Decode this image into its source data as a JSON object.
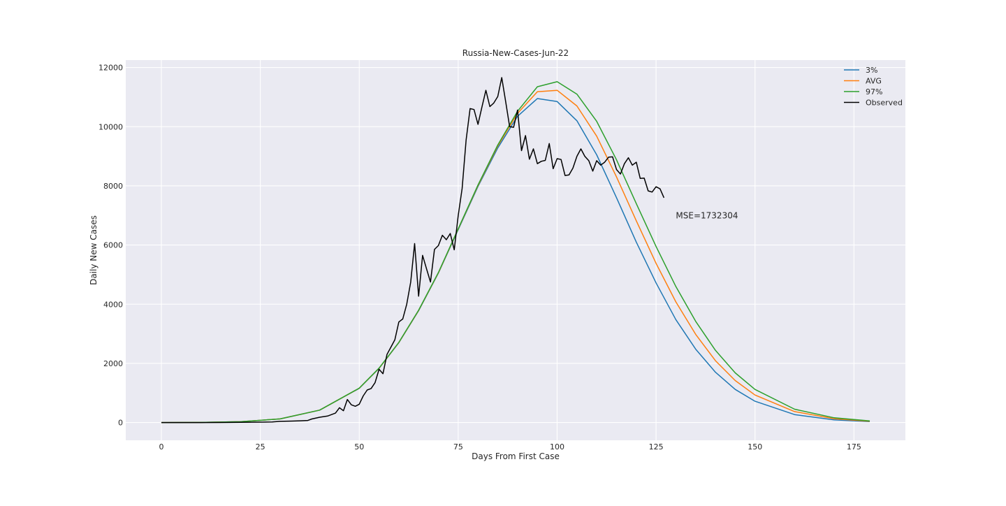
{
  "chart_data": {
    "type": "line",
    "title": "Russia-New-Cases-Jun-22",
    "xlabel": "Days From First Case",
    "ylabel": "Daily New Cases",
    "xlim": [
      -9,
      188
    ],
    "ylim": [
      -600,
      12250
    ],
    "xticks": [
      0,
      25,
      50,
      75,
      100,
      125,
      150,
      175
    ],
    "xtick_labels": [
      "0",
      "25",
      "50",
      "75",
      "100",
      "125",
      "150",
      "175"
    ],
    "yticks": [
      0,
      2000,
      4000,
      6000,
      8000,
      10000,
      12000
    ],
    "ytick_labels": [
      "0",
      "2000",
      "4000",
      "6000",
      "8000",
      "10000",
      "12000"
    ],
    "grid": true,
    "legend_position": "top-right",
    "annotation": {
      "text": "MSE=1732304",
      "x": 130,
      "y": 6900
    },
    "series": [
      {
        "name": "3%",
        "color": "#1f77b4",
        "x": [
          0,
          10,
          20,
          30,
          40,
          50,
          55,
          60,
          65,
          70,
          75,
          80,
          85,
          90,
          95,
          100,
          105,
          110,
          115,
          120,
          125,
          130,
          135,
          140,
          145,
          150,
          160,
          170,
          179
        ],
        "y": [
          0,
          4,
          28,
          122,
          420,
          1155,
          1830,
          2700,
          3780,
          5050,
          6520,
          7980,
          9280,
          10350,
          10950,
          10850,
          10200,
          9050,
          7600,
          6100,
          4720,
          3480,
          2480,
          1700,
          1120,
          720,
          270,
          90,
          30
        ]
      },
      {
        "name": "AVG",
        "color": "#ff7f0e",
        "x": [
          0,
          10,
          20,
          30,
          40,
          50,
          55,
          60,
          65,
          70,
          75,
          80,
          85,
          90,
          95,
          100,
          105,
          110,
          115,
          120,
          125,
          130,
          135,
          140,
          145,
          150,
          160,
          170,
          179
        ],
        "y": [
          0,
          4,
          28,
          122,
          420,
          1160,
          1835,
          2705,
          3790,
          5060,
          6540,
          8010,
          9350,
          10450,
          11180,
          11230,
          10700,
          9680,
          8300,
          6820,
          5380,
          4080,
          2980,
          2090,
          1420,
          930,
          370,
          130,
          45
        ]
      },
      {
        "name": "97%",
        "color": "#2ca02c",
        "x": [
          0,
          10,
          20,
          30,
          40,
          50,
          55,
          60,
          65,
          70,
          75,
          80,
          85,
          90,
          95,
          100,
          105,
          110,
          115,
          120,
          125,
          130,
          135,
          140,
          145,
          150,
          160,
          170,
          179
        ],
        "y": [
          0,
          4,
          28,
          122,
          420,
          1162,
          1840,
          2710,
          3795,
          5070,
          6550,
          8030,
          9380,
          10520,
          11350,
          11520,
          11100,
          10180,
          8880,
          7400,
          5950,
          4600,
          3420,
          2440,
          1680,
          1120,
          450,
          160,
          55
        ]
      },
      {
        "name": "Observed",
        "color": "#000000",
        "x": [
          0,
          5,
          10,
          15,
          20,
          25,
          28,
          30,
          33,
          35,
          37,
          38,
          40,
          42,
          44,
          45,
          46,
          47,
          48,
          49,
          50,
          51,
          52,
          53,
          54,
          55,
          56,
          57,
          58,
          59,
          60,
          61,
          62,
          63,
          64,
          65,
          66,
          67,
          68,
          69,
          70,
          71,
          72,
          73,
          74,
          75,
          76,
          77,
          78,
          79,
          80,
          81,
          82,
          83,
          84,
          85,
          86,
          87,
          88,
          89,
          90,
          91,
          92,
          93,
          94,
          95,
          96,
          97,
          98,
          99,
          100,
          101,
          102,
          103,
          104,
          105,
          106,
          107,
          108,
          109,
          110,
          111,
          112,
          113,
          114,
          115,
          116,
          117,
          118,
          119,
          120,
          121,
          122,
          123,
          124,
          125,
          126,
          127
        ],
        "y": [
          0,
          0,
          1,
          3,
          8,
          15,
          20,
          40,
          50,
          60,
          70,
          120,
          180,
          220,
          320,
          500,
          400,
          780,
          600,
          550,
          620,
          900,
          1100,
          1150,
          1350,
          1800,
          1650,
          2300,
          2550,
          2800,
          3400,
          3500,
          4000,
          4750,
          6050,
          4270,
          5650,
          5200,
          4750,
          5850,
          5980,
          6330,
          6180,
          6390,
          5840,
          7000,
          7910,
          9550,
          10610,
          10580,
          10080,
          10660,
          11230,
          10680,
          10800,
          11020,
          11660,
          10850,
          10000,
          9980,
          10560,
          9190,
          9700,
          8900,
          9250,
          8750,
          8830,
          8860,
          9430,
          8580,
          8920,
          8890,
          8350,
          8370,
          8600,
          9000,
          9250,
          9000,
          8850,
          8500,
          8850,
          8700,
          8800,
          8970,
          8980,
          8550,
          8400,
          8750,
          8950,
          8700,
          8800,
          8250,
          8260,
          7830,
          7790,
          7970,
          7900,
          7600
        ]
      }
    ]
  }
}
